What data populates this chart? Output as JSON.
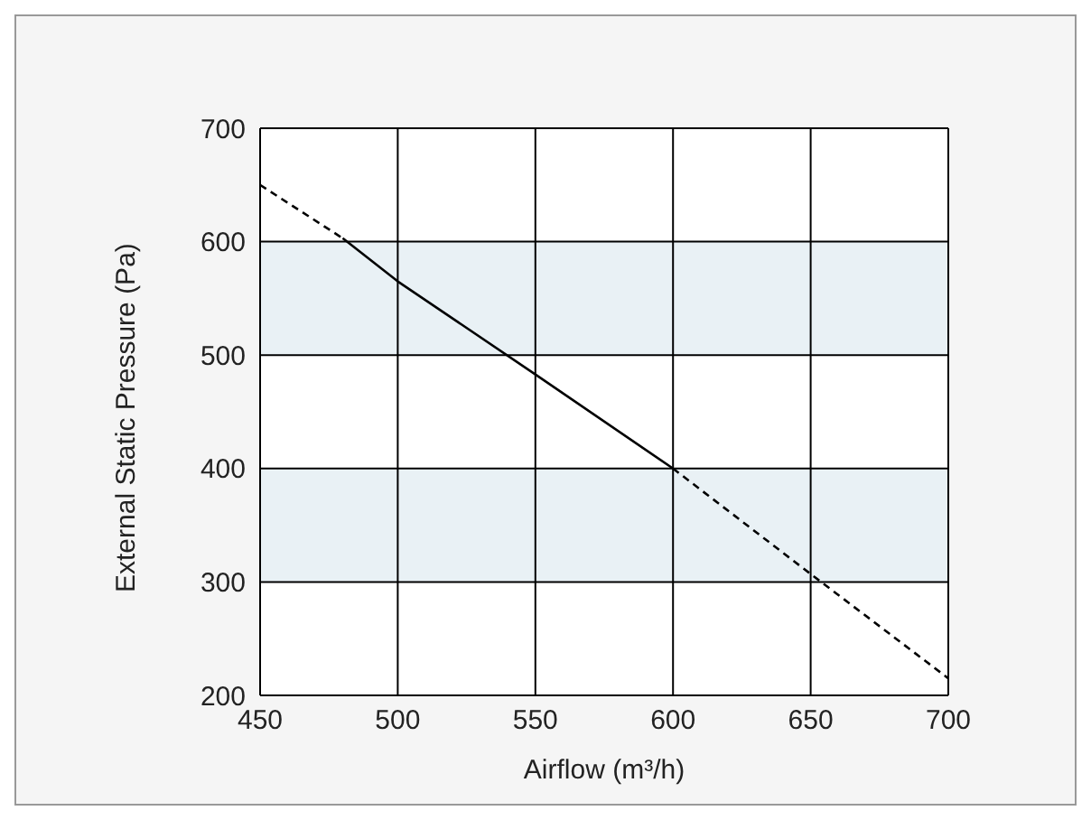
{
  "chart_data": {
    "type": "line",
    "xlabel": "Airflow (m³/h)",
    "ylabel": "External Static Pressure (Pa)",
    "xlim": [
      450,
      700
    ],
    "xticks": [
      450,
      500,
      550,
      600,
      650,
      700
    ],
    "ylim": [
      200,
      700
    ],
    "yticks": [
      200,
      300,
      400,
      500,
      600,
      700
    ],
    "grid": true,
    "marker": "none",
    "legend": false,
    "bands": [
      {
        "axis": "y",
        "from": 500,
        "to": 600,
        "color": "#e9f1f5"
      },
      {
        "axis": "y",
        "from": 300,
        "to": 400,
        "color": "#e9f1f5"
      }
    ],
    "series": [
      {
        "color": "#000000",
        "line_style": "solid",
        "x": [
          480,
          500,
          550,
          600
        ],
        "values": [
          603,
          565,
          483,
          400
        ]
      },
      {
        "color": "#000000",
        "line_style": "dashed",
        "x": [
          450,
          480
        ],
        "values": [
          650,
          603
        ]
      },
      {
        "color": "#000000",
        "line_style": "dashed",
        "x": [
          600,
          650,
          700
        ],
        "values": [
          400,
          307,
          215
        ]
      }
    ]
  }
}
